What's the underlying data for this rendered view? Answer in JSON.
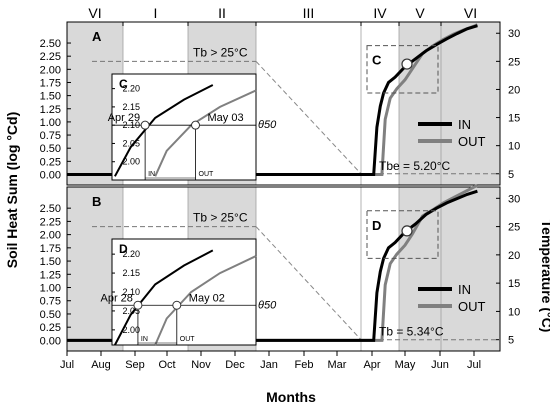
{
  "figure": {
    "x_axis_title": "Months",
    "left_axis_title": "Soil Heat Sum (log °Cd)",
    "right_axis_title": "Temperature (°C)",
    "month_ticks": [
      "Jul",
      "Aug",
      "Sep",
      "Oct",
      "Nov",
      "Dec",
      "Jan",
      "Feb",
      "Mar",
      "Apr",
      "May",
      "Jun",
      "Jul"
    ],
    "season_labels": [
      "VI",
      "I",
      "II",
      "III",
      "IV",
      "V",
      "VI"
    ]
  },
  "chart_data": [
    {
      "panel": "A",
      "type": "line",
      "ylim": [
        -0.2,
        2.9
      ],
      "yticks": [
        "0.00",
        "0.25",
        "0.50",
        "0.75",
        "1.00",
        "1.25",
        "1.50",
        "1.75",
        "2.00",
        "2.25",
        "2.50"
      ],
      "ylim_right": [
        3,
        32
      ],
      "yticks_right": [
        "5",
        "10",
        "15",
        "20",
        "25",
        "30"
      ],
      "threshold_label": "Tb > 25°C",
      "base_temperature_label": "Tbe = 5.20°C",
      "zoom_box_label": "C",
      "legend": [
        "IN",
        "OUT"
      ],
      "series": [
        {
          "name": "IN",
          "color": "#000000",
          "x": [
            8.95,
            9.05,
            9.15,
            9.25,
            9.35,
            9.5,
            9.7,
            10.0,
            10.3,
            10.6,
            10.9,
            11.2,
            11.5,
            11.8,
            12.1
          ],
          "y": [
            0.0,
            0.0,
            0.9,
            1.3,
            1.55,
            1.75,
            1.85,
            2.05,
            2.2,
            2.35,
            2.47,
            2.58,
            2.68,
            2.77,
            2.83
          ]
        },
        {
          "name": "OUT",
          "color": "#808080",
          "x": [
            9.2,
            9.3,
            9.4,
            9.55,
            9.75,
            10.0,
            10.2,
            10.5,
            10.8,
            11.1,
            11.4,
            11.7,
            12.0,
            12.1
          ],
          "y": [
            0.0,
            0.0,
            1.05,
            1.45,
            1.63,
            1.8,
            2.0,
            2.3,
            2.45,
            2.57,
            2.67,
            2.75,
            2.82,
            2.85
          ]
        }
      ],
      "inset": {
        "label": "C",
        "yticks": [
          "2.00",
          "2.05",
          "2.10",
          "2.15",
          "2.20"
        ],
        "ylim": [
          1.95,
          2.24
        ],
        "threshold_label": "θ50",
        "threshold_value": 2.1,
        "annotations": [
          {
            "text": "Apr 29",
            "series": "IN"
          },
          {
            "text": "May 03",
            "series": "OUT"
          }
        ],
        "bracket_labels": [
          "IN",
          "OUT"
        ]
      }
    },
    {
      "panel": "B",
      "type": "line",
      "ylim": [
        -0.2,
        2.9
      ],
      "yticks": [
        "0.00",
        "0.25",
        "0.50",
        "0.75",
        "1.00",
        "1.25",
        "1.50",
        "1.75",
        "2.00",
        "2.25",
        "2.50"
      ],
      "ylim_right": [
        3,
        32
      ],
      "yticks_right": [
        "5",
        "10",
        "15",
        "20",
        "25",
        "30"
      ],
      "threshold_label": "Tb > 25°C",
      "base_temperature_label": "Tb = 5.34°C",
      "zoom_box_label": "D",
      "legend": [
        "IN",
        "OUT"
      ],
      "series": [
        {
          "name": "IN",
          "color": "#000000",
          "x": [
            8.95,
            9.05,
            9.15,
            9.25,
            9.35,
            9.5,
            9.7,
            10.0,
            10.3,
            10.6,
            10.9,
            11.2,
            11.5,
            11.8,
            12.1
          ],
          "y": [
            0.0,
            0.0,
            0.9,
            1.3,
            1.55,
            1.75,
            1.85,
            2.05,
            2.2,
            2.38,
            2.5,
            2.6,
            2.68,
            2.76,
            2.82
          ]
        },
        {
          "name": "OUT",
          "color": "#808080",
          "x": [
            9.2,
            9.3,
            9.4,
            9.55,
            9.75,
            10.0,
            10.2,
            10.5,
            10.8,
            11.1,
            11.4,
            11.7,
            12.0,
            12.1
          ],
          "y": [
            0.0,
            0.0,
            1.05,
            1.45,
            1.63,
            1.8,
            2.0,
            2.35,
            2.47,
            2.6,
            2.7,
            2.8,
            2.9,
            2.93
          ]
        }
      ],
      "inset": {
        "label": "D",
        "yticks": [
          "2.00",
          "2.05",
          "2.10",
          "2.15",
          "2.20"
        ],
        "ylim": [
          1.96,
          2.24
        ],
        "threshold_label": "θ50",
        "threshold_value": 2.065,
        "annotations": [
          {
            "text": "Apr 28",
            "series": "IN"
          },
          {
            "text": "May 02",
            "series": "OUT"
          }
        ],
        "bracket_labels": [
          "IN",
          "OUT"
        ]
      }
    }
  ]
}
